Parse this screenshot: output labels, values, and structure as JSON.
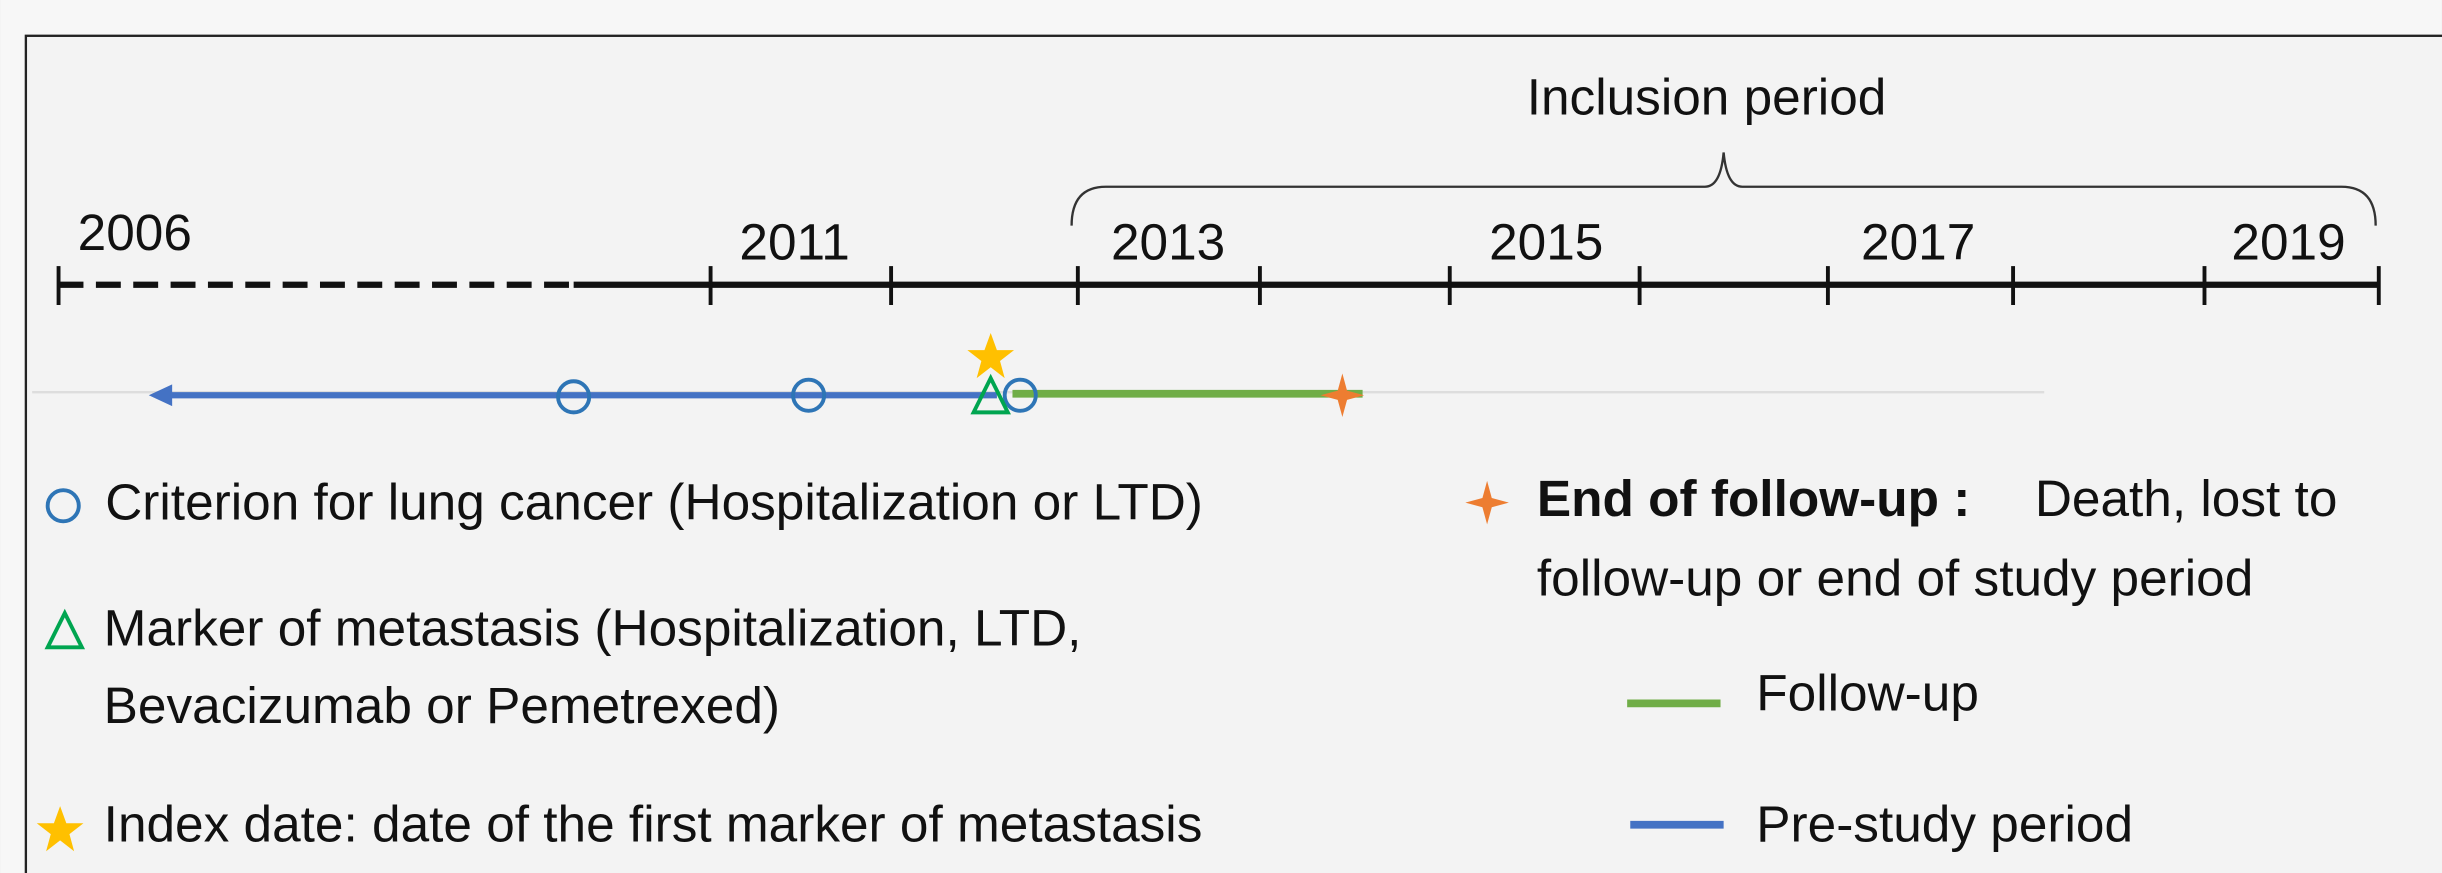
{
  "header": {
    "title": "Inclusion period"
  },
  "axis": {
    "labels": [
      "2006",
      "2011",
      "2013",
      "2015",
      "2017",
      "2019"
    ]
  },
  "legend": {
    "criterion": "Criterion for lung cancer (Hospitalization or LTD)",
    "metastasis": {
      "lines": [
        "Marker of metastasis (Hospitalization, LTD,",
        "Bevacizumab or Pemetrexed)"
      ]
    },
    "index": "Index date: date of the first marker of metastasis",
    "end": {
      "bold": "End of follow-up :",
      "lines": [
        "Death, lost to",
        "follow-up or end of study period"
      ]
    },
    "follow_up": "Follow-up",
    "pre_study": "Pre-study period"
  }
}
